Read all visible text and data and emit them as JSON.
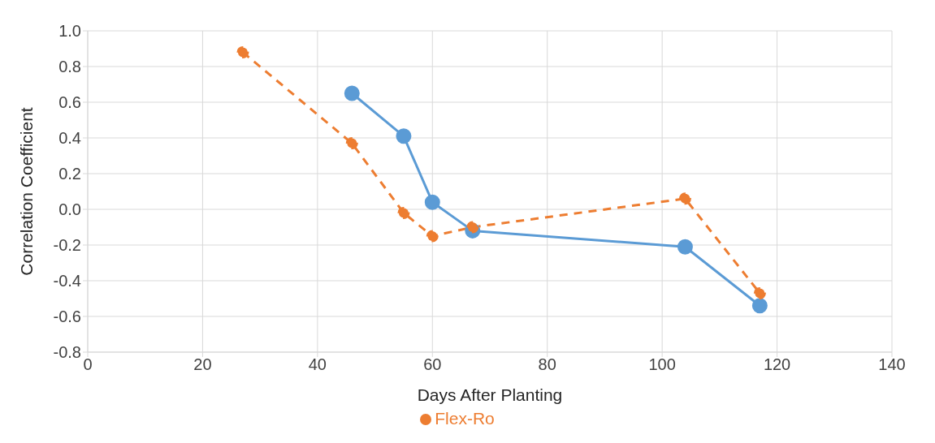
{
  "chart_data": {
    "type": "line",
    "xlabel": "Days After Planting",
    "ylabel": "Correlation Coefficient",
    "xlim": [
      0,
      140
    ],
    "xticks": [
      0,
      20,
      40,
      60,
      80,
      100,
      120,
      140
    ],
    "ylim": [
      -0.8,
      1.0
    ],
    "yticks": [
      {
        "value": -0.8,
        "label": "-0.8"
      },
      {
        "value": -0.6,
        "label": "-0.6"
      },
      {
        "value": -0.4,
        "label": "-0.4"
      },
      {
        "value": -0.2,
        "label": "-0.2"
      },
      {
        "value": 0,
        "label": "0.0"
      },
      {
        "value": 0.2,
        "label": "0.2"
      },
      {
        "value": 0.4,
        "label": "0.4"
      },
      {
        "value": 0.6,
        "label": "0.6"
      },
      {
        "value": 0.8,
        "label": "0.8"
      },
      {
        "value": 1.0,
        "label": "1.0"
      }
    ],
    "grid": true,
    "legend": "bottom",
    "marker": "circle",
    "series": [
      {
        "color": "#5b9bd5",
        "line_style": "solid",
        "x": [
          46,
          55,
          60,
          67,
          104,
          117
        ],
        "values": [
          0.65,
          0.41,
          0.04,
          -0.12,
          -0.21,
          -0.54
        ]
      },
      {
        "name": "Flex-Ro",
        "color": "#ed7d31",
        "line_style": "dashed",
        "x": [
          27,
          46,
          55,
          60,
          67,
          104,
          117
        ],
        "values": [
          0.88,
          0.37,
          -0.02,
          -0.15,
          -0.1,
          0.06,
          -0.47
        ]
      }
    ]
  }
}
